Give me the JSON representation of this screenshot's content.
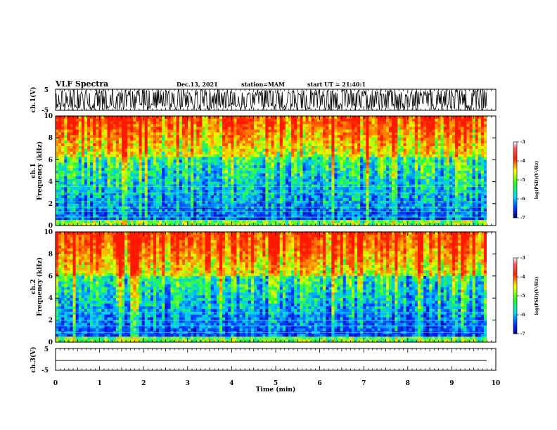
{
  "header": {
    "title": "VLF Spectra",
    "date": "Dec.13, 2021",
    "station": "station=MAM",
    "start": "start UT = 21:40:1"
  },
  "chart_data": [
    {
      "type": "line",
      "panel": "ch1-waveform",
      "ylabel": "ch.1(V)",
      "ylim": [
        -5,
        5
      ],
      "yticks": [
        "5",
        "-5"
      ],
      "trace": "dense noisy waveform with spikes spanning about -5 to 5 V"
    },
    {
      "type": "heatmap",
      "panel": "ch1-spectrogram",
      "ylabel_top": "ch.1",
      "ylabel": "Frequency (kHz)",
      "ylim": [
        0,
        10
      ],
      "yticks": [
        "0",
        "2",
        "4",
        "6",
        "8",
        "10"
      ],
      "colorbar": {
        "label": "log(PSD)(V²/Hz)",
        "range": [
          -7,
          -3
        ],
        "ticks": [
          "-3",
          "-4",
          "-5",
          "-6",
          "-7"
        ]
      }
    },
    {
      "type": "heatmap",
      "panel": "ch2-spectrogram",
      "ylabel_top": "ch.2",
      "ylabel": "Frequency (kHz)",
      "ylim": [
        0,
        10
      ],
      "yticks": [
        "0",
        "2",
        "4",
        "6",
        "8",
        "10"
      ],
      "colorbar": {
        "label": "log(PSD)(V²/Hz)",
        "range": [
          -7,
          -3
        ],
        "ticks": [
          "-3",
          "-4",
          "-5",
          "-6",
          "-7"
        ]
      }
    },
    {
      "type": "line",
      "panel": "ch3-waveform",
      "ylabel": "ch.3(V)",
      "ylim": [
        -5,
        5
      ],
      "yticks": [
        "5",
        "-5"
      ],
      "trace": "flat line near -2 V"
    }
  ],
  "xaxis": {
    "label": "Time (min)",
    "range": [
      0,
      10
    ],
    "ticks": [
      "0",
      "1",
      "2",
      "3",
      "4",
      "5",
      "6",
      "7",
      "8",
      "9",
      "10"
    ]
  },
  "colors": {
    "spec_low": "#0000c8",
    "spec_mid": "#00e0ff",
    "spec_midhigh": "#40ff40",
    "spec_high": "#ffff00",
    "spec_max": "#ff2000"
  }
}
